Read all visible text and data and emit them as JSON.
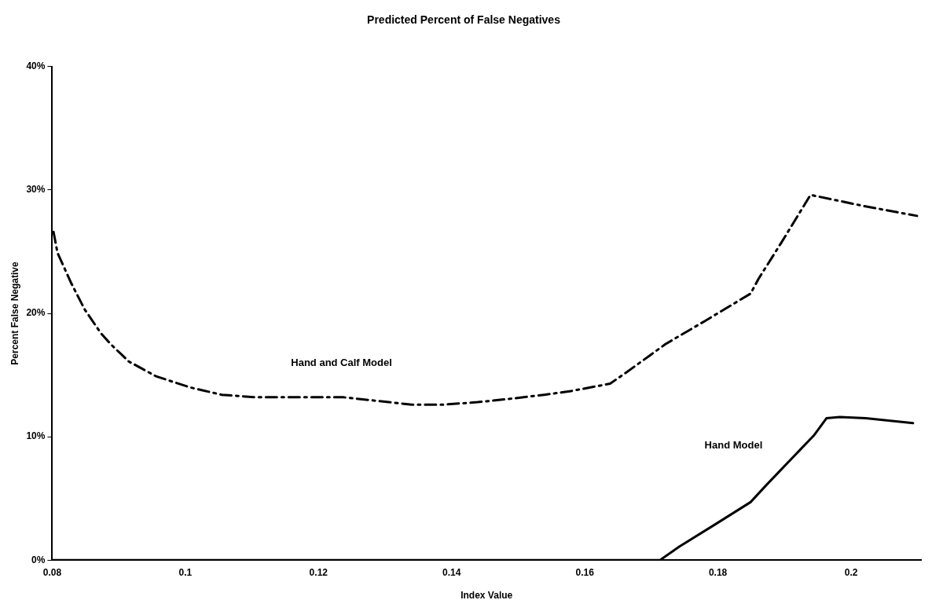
{
  "chart_data": {
    "type": "line",
    "title": "Predicted Percent of False Negatives",
    "xlabel": "Index Value",
    "ylabel": "Percent False Negative",
    "xlim": [
      0.08,
      0.2105
    ],
    "xticks": [
      0.08,
      0.1,
      0.12,
      0.14,
      0.16,
      0.18,
      0.2
    ],
    "ylim": [
      0,
      40
    ],
    "yticks": [
      {
        "value": 0,
        "label": "0%"
      },
      {
        "value": 10,
        "label": "10%"
      },
      {
        "value": 20,
        "label": "20%"
      },
      {
        "value": 30,
        "label": "30%"
      },
      {
        "value": 40,
        "label": "40%"
      }
    ],
    "grid": false,
    "legend": false,
    "marker": "none",
    "series": [
      {
        "name": "Hand and Calf Model",
        "color": "#000000",
        "line_style": "dashed",
        "x": [
          0.0802,
          0.0808,
          0.0829,
          0.0849,
          0.0873,
          0.0888,
          0.0915,
          0.0956,
          0.1007,
          0.1055,
          0.1106,
          0.1165,
          0.1237,
          0.1289,
          0.134,
          0.1388,
          0.1439,
          0.1492,
          0.1539,
          0.1579,
          0.1638,
          0.1662,
          0.1698,
          0.1721,
          0.1781,
          0.1849,
          0.1861,
          0.1896,
          0.1939,
          0.2019,
          0.2099
        ],
        "values": [
          26.6,
          24.9,
          22.4,
          20.3,
          18.4,
          17.5,
          16.1,
          14.9,
          14.0,
          13.4,
          13.2,
          13.2,
          13.2,
          12.9,
          12.6,
          12.6,
          12.8,
          13.1,
          13.4,
          13.7,
          14.3,
          15.2,
          16.6,
          17.5,
          19.4,
          21.6,
          22.8,
          25.8,
          29.6,
          28.7,
          27.9
        ]
      },
      {
        "name": "Hand Model",
        "color": "#000000",
        "line_style": "solid",
        "x": [
          0.08,
          0.1713,
          0.1742,
          0.1796,
          0.1849,
          0.1873,
          0.1944,
          0.1963,
          0.1983,
          0.2022,
          0.2093
        ],
        "values": [
          0,
          0,
          1.1,
          2.9,
          4.7,
          6.1,
          10.1,
          11.5,
          11.6,
          11.5,
          11.1
        ]
      }
    ]
  }
}
